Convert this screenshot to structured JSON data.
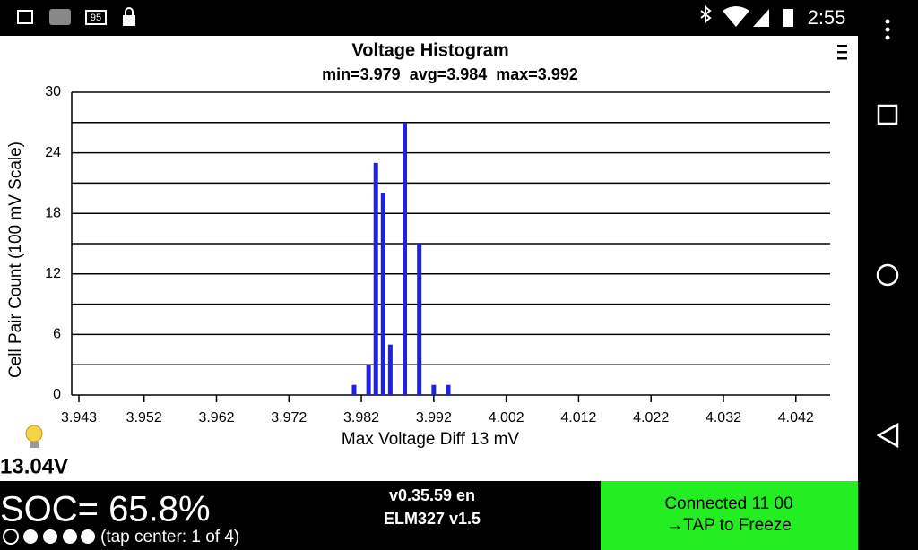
{
  "status_bar": {
    "time": "2:55",
    "notification_badge": "95"
  },
  "chart_data": {
    "type": "bar",
    "title": "Voltage Histogram",
    "subtitle": "min=3.979  avg=3.984  max=3.992",
    "x_label": "Max Voltage Diff 13 mV",
    "y_label": "Cell Pair Count (100 mV Scale)",
    "x": [
      3.981,
      3.983,
      3.984,
      3.985,
      3.986,
      3.988,
      3.99,
      3.992,
      3.994
    ],
    "values": [
      1,
      3,
      23,
      20,
      5,
      27,
      15,
      1,
      1
    ],
    "color": "#1f1fe6",
    "xlim": [
      3.943,
      4.045
    ],
    "xticks": [
      3.943,
      3.952,
      3.962,
      3.972,
      3.982,
      3.992,
      4.002,
      4.012,
      4.022,
      4.032,
      4.042
    ],
    "ylim": [
      0,
      30
    ],
    "yticks": [
      0,
      6,
      12,
      18,
      24,
      30
    ],
    "yminorticks": [
      3,
      9,
      15,
      21,
      27
    ],
    "grid": true
  },
  "battery_voltage": "13.04V",
  "footer": {
    "soc": "SOC= 65.8%",
    "page_hint": "(tap center: 1 of 4)",
    "version": "v0.35.59 en",
    "adapter": "ELM327 v1.5",
    "status_line1": "Connected 11 00",
    "status_line2": "→TAP to Freeze"
  }
}
